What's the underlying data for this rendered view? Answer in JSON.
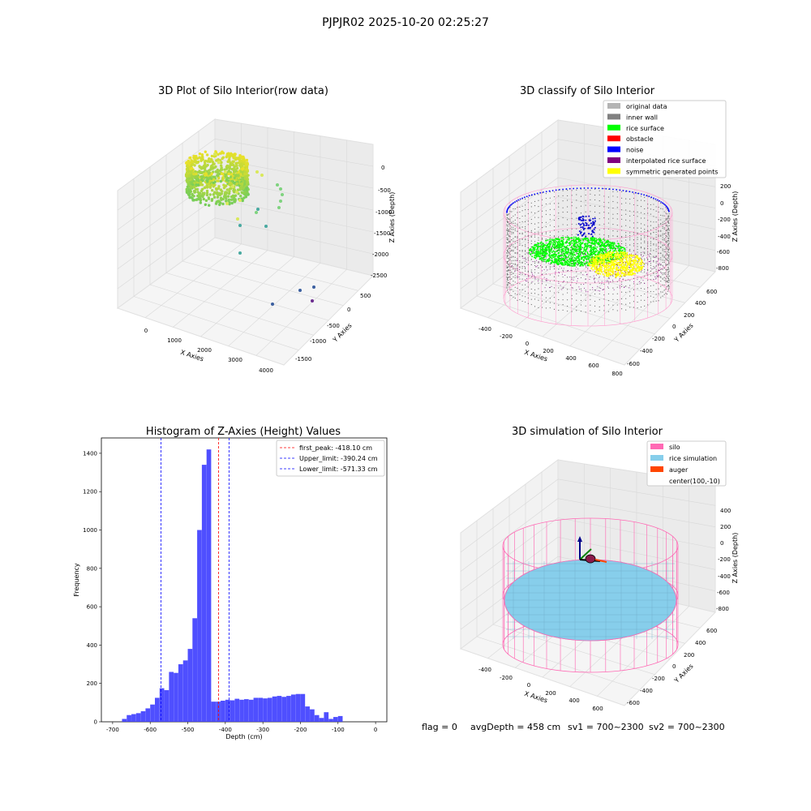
{
  "suptitle": "PJPJR02 2025-10-20 02:25:27",
  "panels": {
    "raw": {
      "title": "3D Plot of Silo Interior(row data)",
      "xlabel": "X Axies",
      "ylabel": "Y Axies",
      "zlabel": "Z Axies (Depth)",
      "xticks": [
        "0",
        "1000",
        "2000",
        "3000",
        "4000"
      ],
      "yticks": [
        "500",
        "0",
        "-500",
        "-1000",
        "-1500"
      ],
      "zticks": [
        "0",
        "-500",
        "-1000",
        "-1500",
        "-2000",
        "-2500"
      ]
    },
    "classify": {
      "title": "3D classify of Silo Interior",
      "xlabel": "X Axies",
      "ylabel": "Y Axies",
      "zlabel": "Z Axies (Depth)",
      "xticks": [
        "-400",
        "-200",
        "0",
        "200",
        "400",
        "600",
        "800"
      ],
      "yticks": [
        "600",
        "400",
        "200",
        "0",
        "-200",
        "-400",
        "-600"
      ],
      "zticks": [
        "200",
        "0",
        "-200",
        "-400",
        "-600",
        "-800"
      ],
      "legend": [
        {
          "label": "original data",
          "color": "#b4b4b4"
        },
        {
          "label": "inner wall",
          "color": "#808080"
        },
        {
          "label": "rice surface",
          "color": "#00ff00"
        },
        {
          "label": "obstacle",
          "color": "#ff0000"
        },
        {
          "label": "noise",
          "color": "#0000ff"
        },
        {
          "label": "interpolated rice surface",
          "color": "#800080"
        },
        {
          "label": "symmetric generated points",
          "color": "#ffff00"
        }
      ]
    },
    "simulation": {
      "title": "3D simulation of Silo Interior",
      "xlabel": "X Axies",
      "ylabel": "Y Axies",
      "zlabel": "Z Axies (Depth)",
      "xticks": [
        "-400",
        "-200",
        "0",
        "200",
        "400",
        "600"
      ],
      "yticks": [
        "600",
        "400",
        "200",
        "0",
        "-200",
        "-400",
        "-600"
      ],
      "zticks": [
        "400",
        "200",
        "0",
        "-200",
        "-400",
        "-600",
        "-800"
      ],
      "legend": [
        {
          "label": "silo",
          "color": "#ff69b4"
        },
        {
          "label": "rice simulation",
          "color": "#87ceeb"
        },
        {
          "label": "auger",
          "color": "#ff4500"
        },
        {
          "label": "center(100,-10)",
          "color": ""
        }
      ]
    }
  },
  "status_line": {
    "flag": "flag = 0",
    "avg_depth": "avgDepth = 458 cm",
    "sv1": "sv1 = 700~2300",
    "sv2": "sv2 = 700~2300"
  },
  "chart_data": [
    {
      "type": "scatter",
      "title": "3D Plot of Silo Interior(row data)",
      "xlabel": "X Axies",
      "ylabel": "Y Axies",
      "zlabel": "Z Axies (Depth)",
      "xlim": [
        -500,
        4300
      ],
      "ylim": [
        -1700,
        700
      ],
      "zlim": [
        -2700,
        100
      ]
    },
    {
      "type": "scatter",
      "title": "3D classify of Silo Interior",
      "xlabel": "X Axies",
      "ylabel": "Y Axies",
      "zlabel": "Z Axies (Depth)",
      "series": [
        {
          "name": "original data"
        },
        {
          "name": "inner wall"
        },
        {
          "name": "rice surface"
        },
        {
          "name": "obstacle"
        },
        {
          "name": "noise"
        },
        {
          "name": "interpolated rice surface"
        },
        {
          "name": "symmetric generated points"
        }
      ]
    },
    {
      "type": "bar",
      "title": "Histogram of Z-Axies (Height) Values",
      "xlabel": "Depth (cm)",
      "ylabel": "Frequency",
      "xlim": [
        -730,
        30
      ],
      "ylim": [
        0,
        1480
      ],
      "xticks": [
        -700,
        -600,
        -500,
        -400,
        -300,
        -200,
        -100,
        0
      ],
      "yticks": [
        0,
        200,
        400,
        600,
        800,
        1000,
        1200,
        1400
      ],
      "bins": {
        "start": -675,
        "width": 12.5,
        "values": [
          15,
          35,
          40,
          45,
          55,
          70,
          90,
          125,
          175,
          165,
          260,
          255,
          300,
          320,
          380,
          540,
          1000,
          1340,
          1420,
          105,
          105,
          110,
          115,
          112,
          120,
          115,
          118,
          115,
          125,
          125,
          122,
          125,
          132,
          135,
          130,
          135,
          142,
          145,
          145,
          80,
          65,
          35,
          20,
          50,
          15,
          25,
          30
        ]
      },
      "vlines": [
        {
          "label": "first_peak: -418.10 cm",
          "x": -418.1,
          "color": "#ff0000"
        },
        {
          "label": "Upper_limit: -390.24 cm",
          "x": -390.24,
          "color": "#0000ff"
        },
        {
          "label": "Lower_limit: -571.33 cm",
          "x": -571.33,
          "color": "#0000ff"
        }
      ]
    },
    {
      "type": "scatter",
      "title": "3D simulation of Silo Interior",
      "xlabel": "X Axies",
      "ylabel": "Y Axies",
      "zlabel": "Z Axies (Depth)",
      "series": [
        {
          "name": "silo"
        },
        {
          "name": "rice simulation"
        },
        {
          "name": "auger"
        }
      ],
      "center": [
        100,
        -10
      ]
    }
  ]
}
